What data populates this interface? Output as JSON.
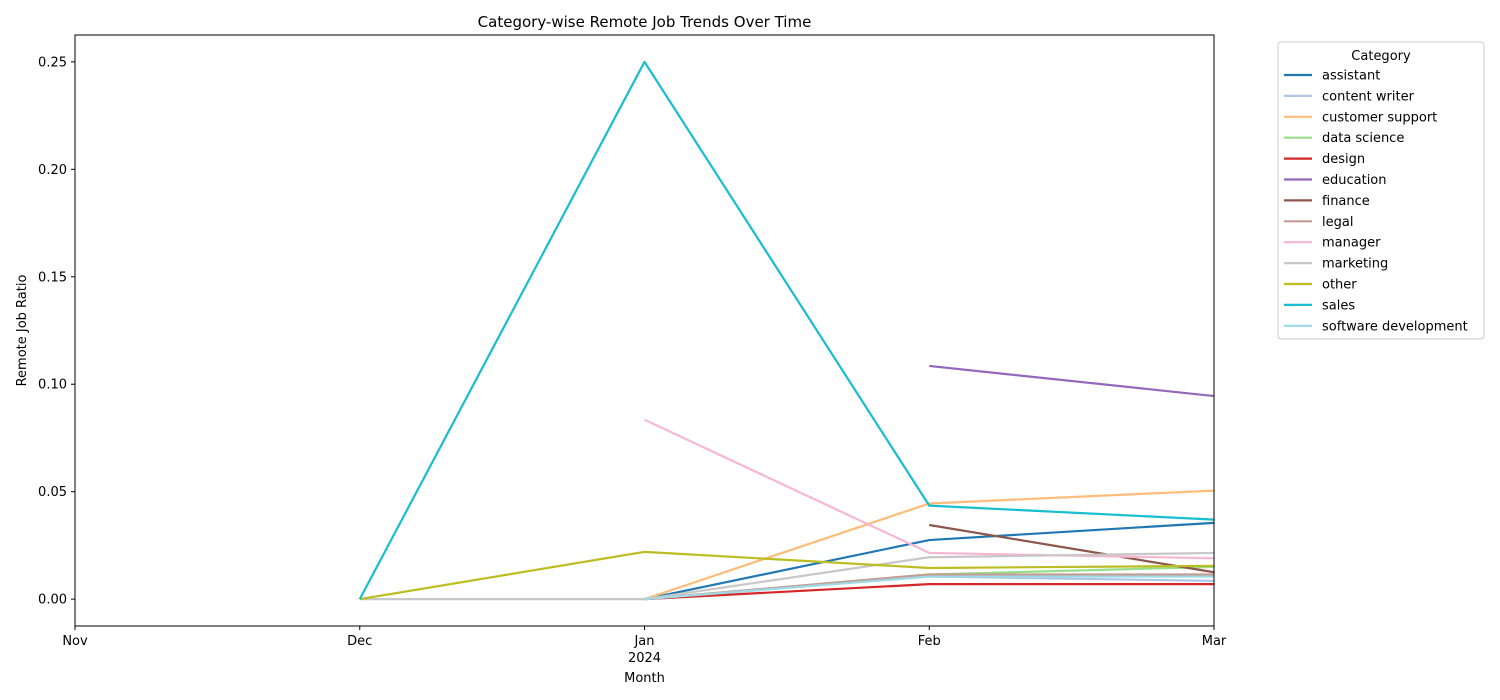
{
  "chart_data": {
    "type": "line",
    "title": "Category-wise Remote Job Trends Over Time",
    "xlabel": "Month",
    "ylabel": "Remote Job Ratio",
    "x": [
      "2023-11",
      "2023-12",
      "2024-01",
      "2024-02",
      "2024-03"
    ],
    "x_tick_labels": [
      "Nov",
      "Dec",
      "Jan",
      "Feb",
      "Mar"
    ],
    "x_year_label": "2024",
    "ylim": [
      -0.0125,
      0.2625
    ],
    "y_ticks": [
      0.0,
      0.05,
      0.1,
      0.15,
      0.2,
      0.25
    ],
    "y_tick_labels": [
      "0.00",
      "0.05",
      "0.10",
      "0.15",
      "0.20",
      "0.25"
    ],
    "grid": false,
    "legend": {
      "title": "Category",
      "placement": "outside-upper-right"
    },
    "series": [
      {
        "name": "assistant",
        "color": "#1f77b4",
        "values": [
          null,
          null,
          0.0,
          0.0275,
          0.0355
        ]
      },
      {
        "name": "content writer",
        "color": "#aec7e8",
        "values": [
          null,
          null,
          0.0,
          0.0105,
          0.0085
        ]
      },
      {
        "name": "customer support",
        "color": "#ffbb78",
        "values": [
          null,
          null,
          0.0,
          0.0445,
          0.0505
        ]
      },
      {
        "name": "data science",
        "color": "#98df8a",
        "values": [
          null,
          null,
          0.0,
          0.0115,
          0.015
        ]
      },
      {
        "name": "design",
        "color": "#d62728",
        "values": [
          null,
          null,
          0.0,
          0.007,
          0.007
        ]
      },
      {
        "name": "education",
        "color": "#9467bd",
        "values": [
          null,
          null,
          null,
          0.1085,
          0.0945
        ]
      },
      {
        "name": "finance",
        "color": "#8c564b",
        "values": [
          null,
          null,
          null,
          0.0345,
          0.0125
        ]
      },
      {
        "name": "legal",
        "color": "#c49c94",
        "values": [
          null,
          null,
          0.0,
          0.0115,
          0.0115
        ]
      },
      {
        "name": "manager",
        "color": "#f7b6d2",
        "values": [
          null,
          null,
          0.0835,
          0.0215,
          0.019
        ]
      },
      {
        "name": "marketing",
        "color": "#c7c7c7",
        "values": [
          null,
          0.0,
          0.0,
          0.0195,
          0.0215
        ]
      },
      {
        "name": "other",
        "color": "#bcbd22",
        "values": [
          null,
          0.0,
          0.022,
          0.0145,
          0.0155
        ]
      },
      {
        "name": "sales",
        "color": "#17becf",
        "values": [
          null,
          0.0,
          0.25,
          0.0435,
          0.037
        ]
      },
      {
        "name": "software development",
        "color": "#9edae5",
        "values": [
          null,
          null,
          0.0,
          0.0105,
          0.0105
        ]
      }
    ]
  }
}
